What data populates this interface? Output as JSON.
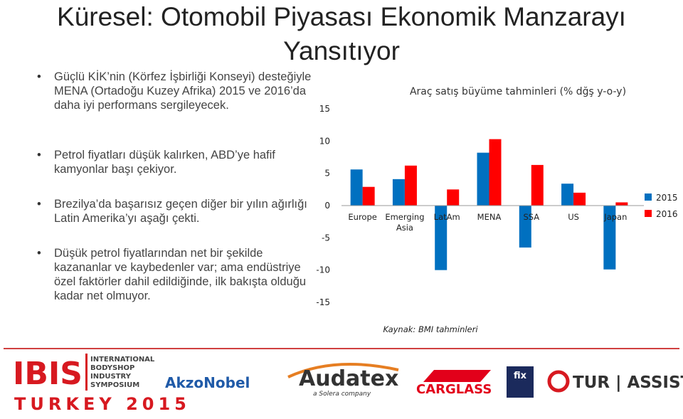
{
  "title": "Küresel: Otomobil Piyasası Ekonomik Manzarayı Yansıtıyor",
  "bullets": [
    "Güçlü KİK’nin (Körfez İşbirliği Konseyi) desteğiyle MENA (Ortadoğu Kuzey Afrika) 2015 ve 2016’da daha iyi performans sergileyecek.",
    "Petrol fiyatları düşük kalırken, ABD’ye hafif kamyonlar başı çekiyor.",
    "Brezilya’da başarısız geçen diğer bir yılın ağırlığı Latin Amerika’yı aşağı çekti.",
    "Düşük petrol fiyatlarından net bir şekilde kazananlar ve kaybedenler var; ama endüstriye özel faktörler dahil edildiğinde, ilk bakışta olduğu kadar net olmuyor."
  ],
  "chart_data": {
    "type": "bar",
    "title": "Araç satış büyüme tahminleri (% dğş y-o-y)",
    "categories": [
      "Europe",
      "Emerging Asia",
      "LatAm",
      "MENA",
      "SSA",
      "US",
      "Japan"
    ],
    "series": [
      {
        "name": "2015",
        "color": "#0070c0",
        "values": [
          5.6,
          4.1,
          -10.0,
          8.2,
          -6.5,
          3.4,
          -9.9
        ]
      },
      {
        "name": "2016",
        "color": "#ff0000",
        "values": [
          2.9,
          6.2,
          2.5,
          10.3,
          6.3,
          2.0,
          0.5
        ]
      }
    ],
    "ylim": [
      -15,
      15
    ],
    "yticks": [
      -15,
      -10,
      -5,
      0,
      5,
      10,
      15
    ],
    "grid": false,
    "legend": "right",
    "source": "Kaynak: BMI tahminleri"
  },
  "logos": {
    "ibis": "IBIS",
    "ibis_lines": [
      "INTERNATIONAL",
      "BODYSHOP",
      "INDUSTRY",
      "SYMPOSIUM"
    ],
    "ibis_event": "TURKEY 2015",
    "akzonobel": "AkzoNobel",
    "audatex": "Audatex",
    "audatex_sub": "a Solera company",
    "carglass": "CARGLASS",
    "fix": "fix",
    "turassist": "TUR | ASSIST"
  }
}
